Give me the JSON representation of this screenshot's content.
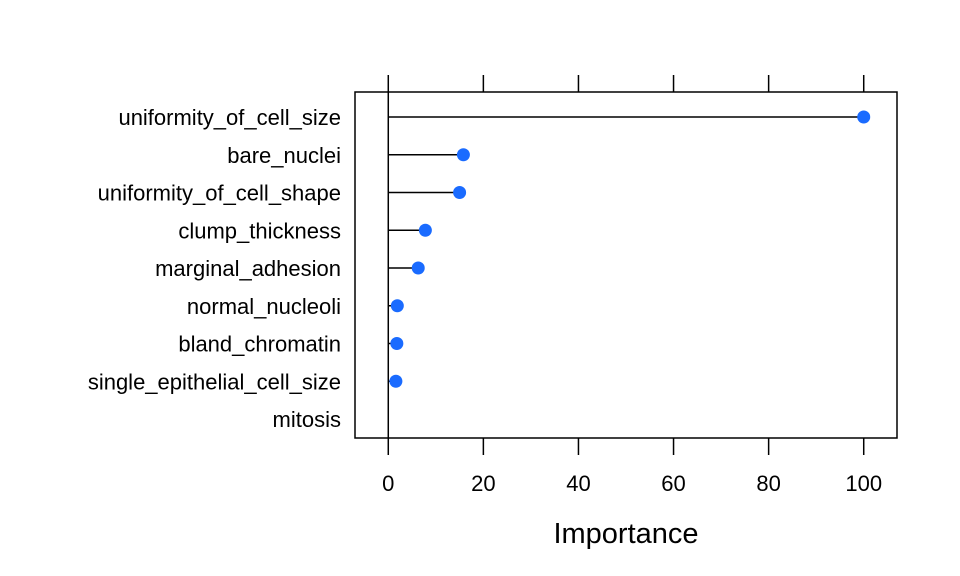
{
  "chart_data": {
    "type": "dotplot",
    "title": "",
    "xlabel": "Importance",
    "ylabel": "",
    "xlim": [
      -7,
      107
    ],
    "x_ticks": [
      0,
      20,
      40,
      60,
      80,
      100
    ],
    "orientation": "horizontal",
    "grid": false,
    "legend": "none",
    "categories": [
      "uniformity_of_cell_size",
      "bare_nuclei",
      "uniformity_of_cell_shape",
      "clump_thickness",
      "marginal_adhesion",
      "normal_nucleoli",
      "bland_chromatin",
      "single_epithelial_cell_size",
      "mitosis"
    ],
    "values": [
      100,
      15.8,
      15.0,
      7.8,
      6.3,
      1.9,
      1.8,
      1.6,
      0
    ],
    "colors": {
      "point": "#1A6BFF",
      "line": "#000000",
      "frame": "#000000"
    }
  }
}
